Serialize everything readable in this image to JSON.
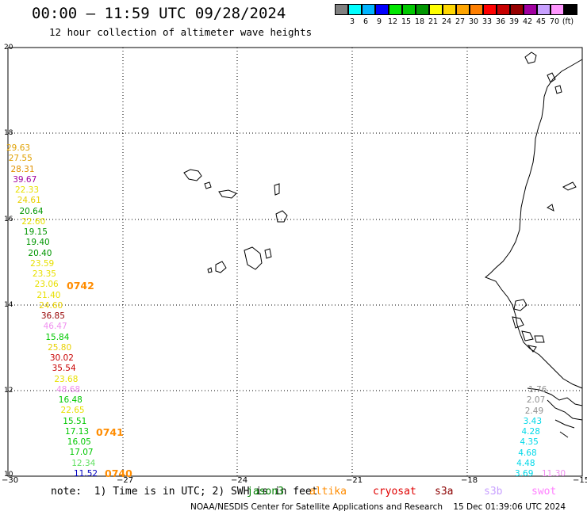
{
  "header": {
    "title": "00:00 – 11:59 UTC 09/28/2024",
    "subtitle": "12 hour collection of altimeter wave heights"
  },
  "colorbar": {
    "colors": [
      "#808080",
      "#00ffff",
      "#00b4ff",
      "#0000ff",
      "#00e600",
      "#00c800",
      "#009600",
      "#ffff00",
      "#ffd700",
      "#ffa500",
      "#ff7f00",
      "#ff0000",
      "#c80000",
      "#960000",
      "#a000a0",
      "#c8a0ff",
      "#ff96ff",
      "#000000"
    ],
    "labels": [
      "3",
      "6",
      "9",
      "12",
      "15",
      "18",
      "21",
      "24",
      "27",
      "30",
      "33",
      "36",
      "39",
      "42",
      "45",
      "70"
    ],
    "unit": "(ft)"
  },
  "axes": {
    "y_labels": [
      "20",
      "18",
      "16",
      "14",
      "12",
      "10"
    ],
    "x_labels": [
      "−30",
      "−27",
      "−24",
      "−21",
      "−18",
      "−15"
    ]
  },
  "observations_west": [
    {
      "v": "29.63",
      "c": "#e0a000"
    },
    {
      "v": "27.55",
      "c": "#e0a000"
    },
    {
      "v": "28.31",
      "c": "#e09000"
    },
    {
      "v": "39.67",
      "c": "#a000a0"
    },
    {
      "v": "22.33",
      "c": "#e8e000"
    },
    {
      "v": "24.61",
      "c": "#e8d000"
    },
    {
      "v": "20.64",
      "c": "#009600"
    },
    {
      "v": "22.60",
      "c": "#e8e000"
    },
    {
      "v": "19.15",
      "c": "#009600"
    },
    {
      "v": "19.40",
      "c": "#009600"
    },
    {
      "v": "20.40",
      "c": "#009600"
    },
    {
      "v": "23.59",
      "c": "#e8e000"
    },
    {
      "v": "23.35",
      "c": "#e8e000"
    },
    {
      "v": "23.06",
      "c": "#e8e000"
    },
    {
      "v": "21.40",
      "c": "#e8e000"
    },
    {
      "v": "24.60",
      "c": "#e8d000"
    },
    {
      "v": "36.85",
      "c": "#960000"
    },
    {
      "v": "46.47",
      "c": "#f090f0"
    },
    {
      "v": "15.84",
      "c": "#00c800"
    },
    {
      "v": "25.80",
      "c": "#e8d000"
    },
    {
      "v": "30.02",
      "c": "#c80000"
    },
    {
      "v": "35.54",
      "c": "#c80000"
    },
    {
      "v": "23.68",
      "c": "#e8e000"
    },
    {
      "v": "48.68",
      "c": "#f090f0"
    },
    {
      "v": "16.48",
      "c": "#00c800"
    },
    {
      "v": "22.65",
      "c": "#e8e000"
    },
    {
      "v": "15.51",
      "c": "#00c800"
    },
    {
      "v": "17.13",
      "c": "#00c800"
    },
    {
      "v": "16.05",
      "c": "#00c800"
    },
    {
      "v": "17.07",
      "c": "#00c800"
    },
    {
      "v": "12.34",
      "c": "#60e060"
    },
    {
      "v": "11.52",
      "c": "#0000c0"
    }
  ],
  "observations_east": [
    {
      "v": "1.76",
      "c": "#909090"
    },
    {
      "v": "2.07",
      "c": "#909090"
    },
    {
      "v": "2.49",
      "c": "#909090"
    },
    {
      "v": "3.43",
      "c": "#00d8e8"
    },
    {
      "v": "4.28",
      "c": "#00d8e8"
    },
    {
      "v": "4.35",
      "c": "#00d8e8"
    },
    {
      "v": "4.68",
      "c": "#00d8e8"
    },
    {
      "v": "4.48",
      "c": "#00d8e8"
    },
    {
      "v": "3.69",
      "c": "#00d8e8"
    }
  ],
  "observation_extra": {
    "v": "11.30",
    "c": "#f090f0"
  },
  "time_labels": [
    {
      "t": "0742",
      "c": "#ff8c00"
    },
    {
      "t": "0741",
      "c": "#ff8c00"
    },
    {
      "t": "0740",
      "c": "#ff8c00"
    }
  ],
  "footer": {
    "note": "note:  1) Time is in UTC; 2) SWH is in feet",
    "satellites": [
      {
        "name": "jason3",
        "c": "#008000"
      },
      {
        "name": "altika",
        "c": "#ff8c00"
      },
      {
        "name": "cryosat",
        "c": "#e00000"
      },
      {
        "name": "s3a",
        "c": "#8b0000"
      },
      {
        "name": "s3b",
        "c": "#c8a0ff"
      },
      {
        "name": "swot",
        "c": "#ff80ff"
      }
    ],
    "credit": "NOAA/NESDIS Center for Satellite Applications and Research    15 Dec 01:39:06 UTC 2024"
  }
}
